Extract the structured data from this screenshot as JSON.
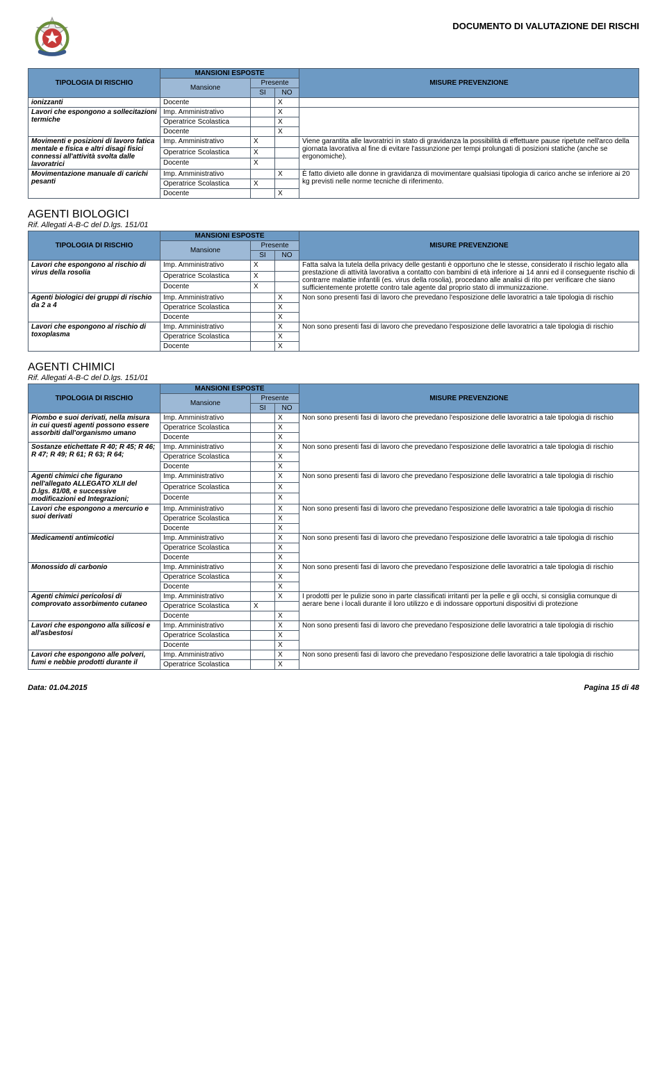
{
  "doc": {
    "title": "DOCUMENTO DI VALUTAZIONE DEI RISCHI",
    "footer_date": "Data: 01.04.2015",
    "footer_page": "Pagina 15 di 48"
  },
  "headers": {
    "tipologia": "TIPOLOGIA DI RISCHIO",
    "mansioni_esposte": "MANSIONI ESPOSTE",
    "mansione": "Mansione",
    "presente": "Presente",
    "si": "SI",
    "no": "NO",
    "misure": "MISURE PREVENZIONE"
  },
  "sections": [
    {
      "title": "AGENTI BIOLOGICI",
      "subtitle": "Rif. Allegati A-B-C del D.lgs. 151/01"
    },
    {
      "title": "AGENTI CHIMICI",
      "subtitle": "Rif. Allegati A-B-C del D.lgs. 151/01"
    }
  ],
  "table1": {
    "groups": [
      {
        "label": "ionizzanti",
        "misura": "",
        "rows": [
          {
            "m": "Docente",
            "si": "",
            "no": "X"
          }
        ]
      },
      {
        "label": "Lavori che espongono a sollecitazioni termiche",
        "misura": "",
        "rows": [
          {
            "m": "Imp. Amministrativo",
            "si": "",
            "no": "X"
          },
          {
            "m": "Operatrice Scolastica",
            "si": "",
            "no": "X"
          },
          {
            "m": "Docente",
            "si": "",
            "no": "X"
          }
        ]
      },
      {
        "label": "Movimenti e posizioni di lavoro fatica mentale e fisica e altri disagi fisici connessi all'attività svolta dalle lavoratrici",
        "misura": "Viene garantita alle lavoratrici in stato di gravidanza la possibilità di effettuare pause ripetute nell'arco della giornata lavorativa al fine di evitare l'assunzione per tempi prolungati di posizioni statiche (anche se ergonomiche).",
        "rows": [
          {
            "m": "Imp. Amministrativo",
            "si": "X",
            "no": ""
          },
          {
            "m": "Operatrice Scolastica",
            "si": "X",
            "no": ""
          },
          {
            "m": "Docente",
            "si": "X",
            "no": ""
          }
        ]
      },
      {
        "label": "Movimentazione manuale di carichi pesanti",
        "misura": "È fatto divieto alle donne in gravidanza di movimentare qualsiasi tipologia di carico anche se inferiore ai 20 kg previsti nelle norme tecniche di riferimento.",
        "rows": [
          {
            "m": "Imp. Amministrativo",
            "si": "",
            "no": "X"
          },
          {
            "m": "Operatrice Scolastica",
            "si": "X",
            "no": ""
          },
          {
            "m": "Docente",
            "si": "",
            "no": "X"
          }
        ]
      }
    ]
  },
  "table2": {
    "groups": [
      {
        "label": "Lavori che espongono al rischio di virus della rosolia",
        "misura": "Fatta salva la tutela della privacy delle gestanti è opportuno che le stesse, considerato il rischio legato alla prestazione di attività lavorativa a contatto con bambini di età inferiore ai 14 anni ed il conseguente rischio di contrarre malattie infantili (es. virus della rosolia), procedano alle analisi di rito per verificare che siano sufficientemente protette contro tale agente dal proprio stato di immunizzazione.",
        "rows": [
          {
            "m": "Imp. Amministrativo",
            "si": "X",
            "no": ""
          },
          {
            "m": "Operatrice Scolastica",
            "si": "X",
            "no": ""
          },
          {
            "m": "Docente",
            "si": "X",
            "no": ""
          }
        ]
      },
      {
        "label": "Agenti biologici dei gruppi di rischio da 2 a 4",
        "misura": "Non sono presenti fasi di lavoro che prevedano l'esposizione delle lavoratrici a tale tipologia di rischio",
        "rows": [
          {
            "m": "Imp. Amministrativo",
            "si": "",
            "no": "X"
          },
          {
            "m": "Operatrice Scolastica",
            "si": "",
            "no": "X"
          },
          {
            "m": "Docente",
            "si": "",
            "no": "X"
          }
        ]
      },
      {
        "label": "Lavori che espongono al rischio di toxoplasma",
        "misura": "Non sono presenti fasi di lavoro che prevedano l'esposizione delle lavoratrici a tale tipologia di rischio",
        "rows": [
          {
            "m": "Imp. Amministrativo",
            "si": "",
            "no": "X"
          },
          {
            "m": "Operatrice Scolastica",
            "si": "",
            "no": "X"
          },
          {
            "m": "Docente",
            "si": "",
            "no": "X"
          }
        ]
      }
    ]
  },
  "table3": {
    "groups": [
      {
        "label": "Piombo e suoi derivati, nella misura in cui questi agenti possono essere assorbiti dall'organismo umano",
        "misura": "Non sono presenti fasi di lavoro che prevedano l'esposizione delle lavoratrici a tale tipologia di rischio",
        "rows": [
          {
            "m": "Imp. Amministrativo",
            "si": "",
            "no": "X"
          },
          {
            "m": "Operatrice Scolastica",
            "si": "",
            "no": "X"
          },
          {
            "m": "Docente",
            "si": "",
            "no": "X"
          }
        ]
      },
      {
        "label": "Sostanze etichettate R 40; R 45; R 46; R 47; R 49; R 61; R 63; R 64;",
        "misura": "Non sono presenti fasi di lavoro che prevedano l'esposizione delle lavoratrici a tale tipologia di rischio",
        "rows": [
          {
            "m": "Imp. Amministrativo",
            "si": "",
            "no": "X"
          },
          {
            "m": "Operatrice Scolastica",
            "si": "",
            "no": "X"
          },
          {
            "m": "Docente",
            "si": "",
            "no": "X"
          }
        ]
      },
      {
        "label": "Agenti chimici che figurano nell'allegato ALLEGATO XLII del D.lgs. 81/08, e successive modificazioni ed Integrazioni;",
        "misura": "Non sono presenti fasi di lavoro che prevedano l'esposizione delle lavoratrici a tale tipologia di rischio",
        "rows": [
          {
            "m": "Imp. Amministrativo",
            "si": "",
            "no": "X"
          },
          {
            "m": "Operatrice Scolastica",
            "si": "",
            "no": "X"
          },
          {
            "m": "Docente",
            "si": "",
            "no": "X"
          }
        ]
      },
      {
        "label": "Lavori che espongono a mercurio e suoi derivati",
        "misura": "Non sono presenti fasi di lavoro che prevedano l'esposizione delle lavoratrici a tale tipologia di rischio",
        "rows": [
          {
            "m": "Imp. Amministrativo",
            "si": "",
            "no": "X"
          },
          {
            "m": "Operatrice Scolastica",
            "si": "",
            "no": "X"
          },
          {
            "m": "Docente",
            "si": "",
            "no": "X"
          }
        ]
      },
      {
        "label": "Medicamenti antimicotici",
        "misura": "Non sono presenti fasi di lavoro che prevedano l'esposizione delle lavoratrici a tale tipologia di rischio",
        "rows": [
          {
            "m": "Imp. Amministrativo",
            "si": "",
            "no": "X"
          },
          {
            "m": "Operatrice Scolastica",
            "si": "",
            "no": "X"
          },
          {
            "m": "Docente",
            "si": "",
            "no": "X"
          }
        ]
      },
      {
        "label": "Monossido di carbonio",
        "misura": "Non sono presenti fasi di lavoro che prevedano l'esposizione delle lavoratrici a tale tipologia di rischio",
        "rows": [
          {
            "m": "Imp. Amministrativo",
            "si": "",
            "no": "X"
          },
          {
            "m": "Operatrice Scolastica",
            "si": "",
            "no": "X"
          },
          {
            "m": "Docente",
            "si": "",
            "no": "X"
          }
        ]
      },
      {
        "label": "Agenti chimici pericolosi di comprovato assorbimento cutaneo",
        "misura": "I prodotti per le pulizie sono in parte classificati irritanti per la pelle e gli occhi, si consiglia comunque di aerare bene i locali durante il loro utilizzo e di indossare opportuni dispositivi di protezione",
        "rows": [
          {
            "m": "Imp. Amministrativo",
            "si": "",
            "no": "X"
          },
          {
            "m": "Operatrice Scolastica",
            "si": "X",
            "no": ""
          },
          {
            "m": "Docente",
            "si": "",
            "no": "X"
          }
        ]
      },
      {
        "label": "Lavori che espongono alla silicosi e all'asbestosi",
        "misura": "Non sono presenti fasi di lavoro che prevedano l'esposizione delle lavoratrici a tale tipologia di rischio",
        "rows": [
          {
            "m": "Imp. Amministrativo",
            "si": "",
            "no": "X"
          },
          {
            "m": "Operatrice Scolastica",
            "si": "",
            "no": "X"
          },
          {
            "m": "Docente",
            "si": "",
            "no": "X"
          }
        ]
      },
      {
        "label": "Lavori che espongono alle polveri, fumi e nebbie prodotti durante il",
        "misura": "Non sono presenti fasi di lavoro che prevedano l'esposizione delle lavoratrici a tale tipologia di rischio",
        "rows": [
          {
            "m": "Imp. Amministrativo",
            "si": "",
            "no": "X"
          },
          {
            "m": "Operatrice Scolastica",
            "si": "",
            "no": "X"
          }
        ]
      }
    ]
  }
}
